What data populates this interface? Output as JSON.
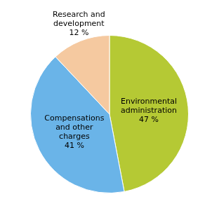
{
  "chart_data": {
    "type": "pie",
    "categories": [
      "Environmental\nadministration",
      "Compensations\nand other\ncharges",
      "Research and\ndevelopment"
    ],
    "values": [
      47,
      41,
      12
    ],
    "value_labels": [
      "47 %",
      "41 %",
      "12 %"
    ],
    "colors": [
      "#b5c934",
      "#6ab4e8",
      "#f5c9a0"
    ],
    "data_labels": true,
    "legend": false
  }
}
